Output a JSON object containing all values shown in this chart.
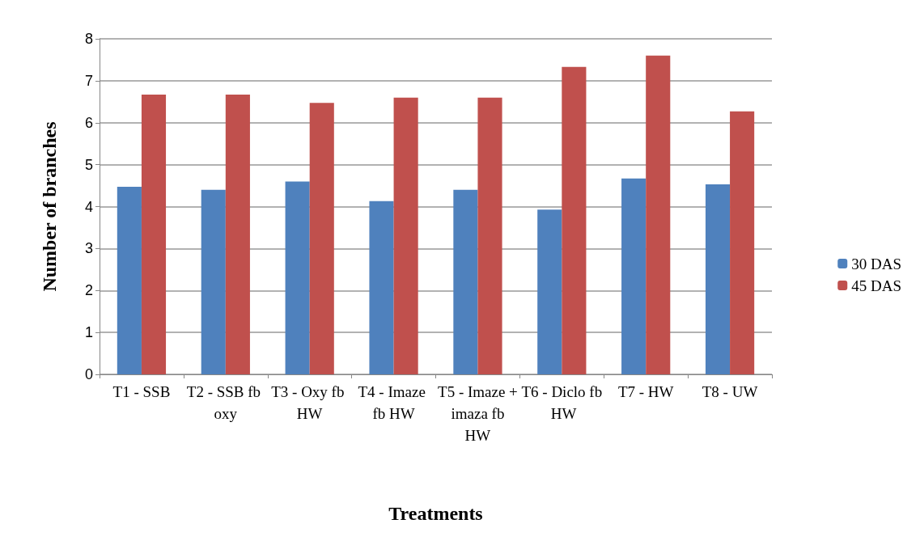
{
  "chart_data": {
    "type": "bar",
    "xlabel": "Treatments",
    "ylabel": "Number of branches",
    "categories": [
      "T1 - SSB",
      "T2 - SSB fb oxy",
      "T3 - Oxy fb HW",
      "T4 - Imaze fb HW",
      "T5 - Imaze + imaza fb HW",
      "T6 - Diclo fb HW",
      "T7 - HW",
      "T8 - UW"
    ],
    "series": [
      {
        "name": "30 DAS",
        "color": "#4f81bd",
        "values": [
          4.47,
          4.4,
          4.6,
          4.13,
          4.4,
          3.93,
          4.67,
          4.53
        ]
      },
      {
        "name": "45 DAS",
        "color": "#c0504d",
        "values": [
          6.67,
          6.67,
          6.47,
          6.6,
          6.6,
          7.33,
          7.6,
          6.27
        ]
      }
    ],
    "ylim": [
      0,
      8
    ],
    "yticks": [
      0,
      1,
      2,
      3,
      4,
      5,
      6,
      7,
      8
    ],
    "grid": "y",
    "legend": "right"
  }
}
